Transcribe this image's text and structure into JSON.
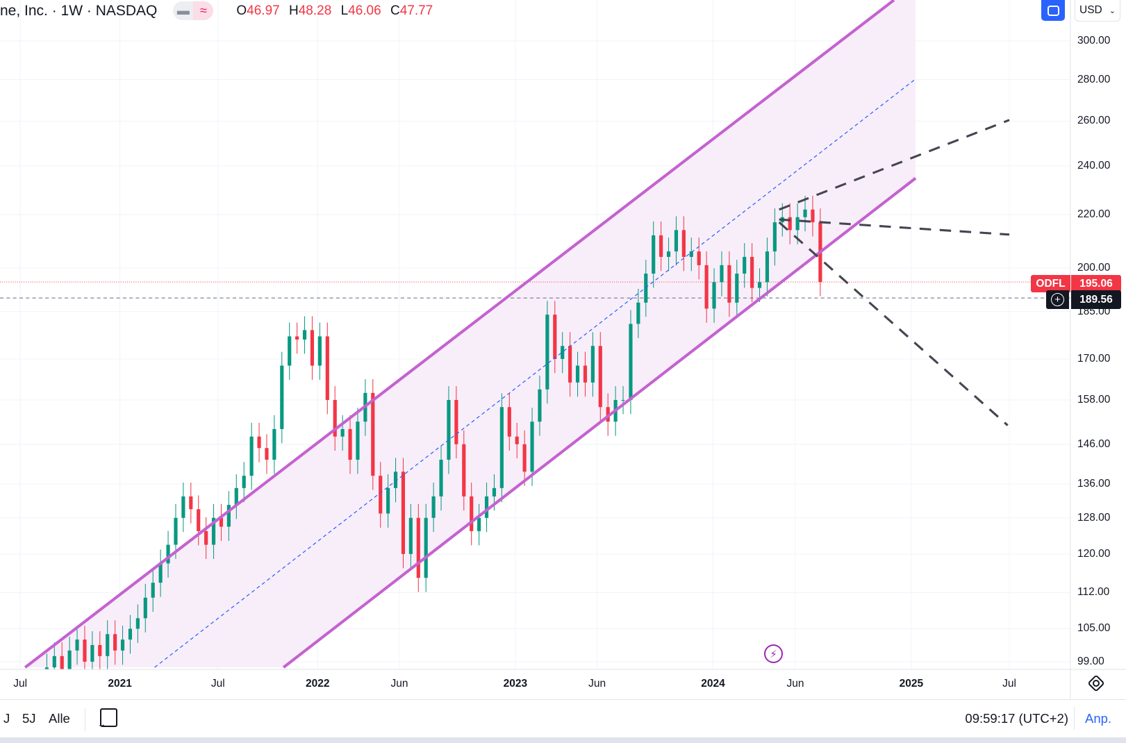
{
  "header": {
    "symbol_title": "ne, Inc. · 1W · NASDAQ",
    "ohlc": {
      "o_label": "O",
      "o": "46.97",
      "h_label": "H",
      "h": "48.28",
      "l_label": "L",
      "l": "46.06",
      "c_label": "C",
      "c": "47.77"
    },
    "currency": "USD"
  },
  "price_tags": {
    "symbol": "ODFL",
    "last_price": "195.06",
    "crosshair_price": "189.56",
    "last_color": "#f23645"
  },
  "footer": {
    "ranges": [
      "J",
      "5J",
      "Alle"
    ],
    "clock": "09:59:17 (UTC+2)",
    "adjust_label": "Anp."
  },
  "icons": [
    "fullscreen-icon",
    "chevron-down-icon",
    "settings-icon",
    "calendar-goto-icon",
    "plus-circle-icon",
    "lightning-icon"
  ],
  "chart_data": {
    "type": "candlestick",
    "y_scale": "log",
    "ylim": [
      97,
      325
    ],
    "y_ticks": [
      "300.00",
      "280.00",
      "260.00",
      "240.00",
      "220.00",
      "200.00",
      "185.00",
      "170.00",
      "158.00",
      "146.00",
      "136.00",
      "128.00",
      "120.00",
      "112.00",
      "105.00",
      "99.00"
    ],
    "x_ticks": [
      {
        "label": "Jul",
        "date": "2020-07-01",
        "bold": false
      },
      {
        "label": "2021",
        "date": "2021-01-01",
        "bold": true
      },
      {
        "label": "Jul",
        "date": "2021-07-01",
        "bold": false
      },
      {
        "label": "2022",
        "date": "2022-01-01",
        "bold": true
      },
      {
        "label": "Jun",
        "date": "2022-06-01",
        "bold": false
      },
      {
        "label": "2023",
        "date": "2023-01-01",
        "bold": true
      },
      {
        "label": "Jun",
        "date": "2023-06-01",
        "bold": false
      },
      {
        "label": "2024",
        "date": "2024-01-01",
        "bold": true
      },
      {
        "label": "Jun",
        "date": "2024-06-01",
        "bold": false
      },
      {
        "label": "2025",
        "date": "2025-01-01",
        "bold": true
      },
      {
        "label": "Jul",
        "date": "2025-07-01",
        "bold": false
      }
    ],
    "series_start": "2020-08-19",
    "series_interval_days": 14,
    "closes": [
      98,
      100,
      97,
      101,
      103,
      99,
      102,
      100,
      104,
      101,
      103,
      105,
      107,
      111,
      114,
      118,
      122,
      128,
      133,
      130,
      125,
      122,
      128,
      126,
      131,
      135,
      138,
      148,
      145,
      142,
      150,
      168,
      177,
      176,
      179,
      168,
      177,
      158,
      148,
      150,
      142,
      152,
      160,
      138,
      129,
      135,
      139,
      120,
      128,
      115,
      128,
      133,
      142,
      158,
      146,
      133,
      125,
      128,
      133,
      135,
      156,
      148,
      146,
      139,
      152,
      161,
      184,
      170,
      174,
      163,
      168,
      163,
      174,
      156,
      152,
      158,
      158,
      181,
      188,
      198,
      212,
      204,
      206,
      214,
      204,
      206,
      201,
      186,
      195,
      201,
      188,
      198,
      204,
      193,
      195,
      206,
      217,
      219,
      214,
      219,
      222,
      217,
      195.06
    ],
    "colors": {
      "up": "#089981",
      "down": "#f23645",
      "channel": "#c462d0",
      "channel_fill": "#f8eef9",
      "midline": "#2962ff",
      "projection": "#434651"
    },
    "channel": {
      "upper": [
        {
          "date": "2020-07-10",
          "price": 98
        },
        {
          "date": "2024-11-30",
          "price": 322.7
        }
      ],
      "lower": [
        {
          "date": "2021-10-30",
          "price": 98
        },
        {
          "date": "2025-01-09",
          "price": 234.8
        }
      ],
      "mid": [
        {
          "date": "2021-03-06",
          "price": 98
        },
        {
          "date": "2025-01-09",
          "price": 280.3
        }
      ]
    },
    "projections": [
      [
        {
          "date": "2024-05-02",
          "price": 222
        },
        {
          "date": "2025-07-01",
          "price": 260.5
        }
      ],
      [
        {
          "date": "2024-05-02",
          "price": 218.1
        },
        {
          "date": "2025-07-01",
          "price": 212.3
        }
      ],
      [
        {
          "date": "2024-05-02",
          "price": 217
        },
        {
          "date": "2025-06-28",
          "price": 151
        }
      ]
    ],
    "h_lines": [
      {
        "price": 195.06,
        "style": "dotted",
        "color": "#f23645"
      },
      {
        "price": 189.56,
        "style": "dashed",
        "color": "#5d6b86"
      }
    ],
    "event_marker": {
      "date": "2024-04-24",
      "icon": "lightning-icon"
    }
  }
}
